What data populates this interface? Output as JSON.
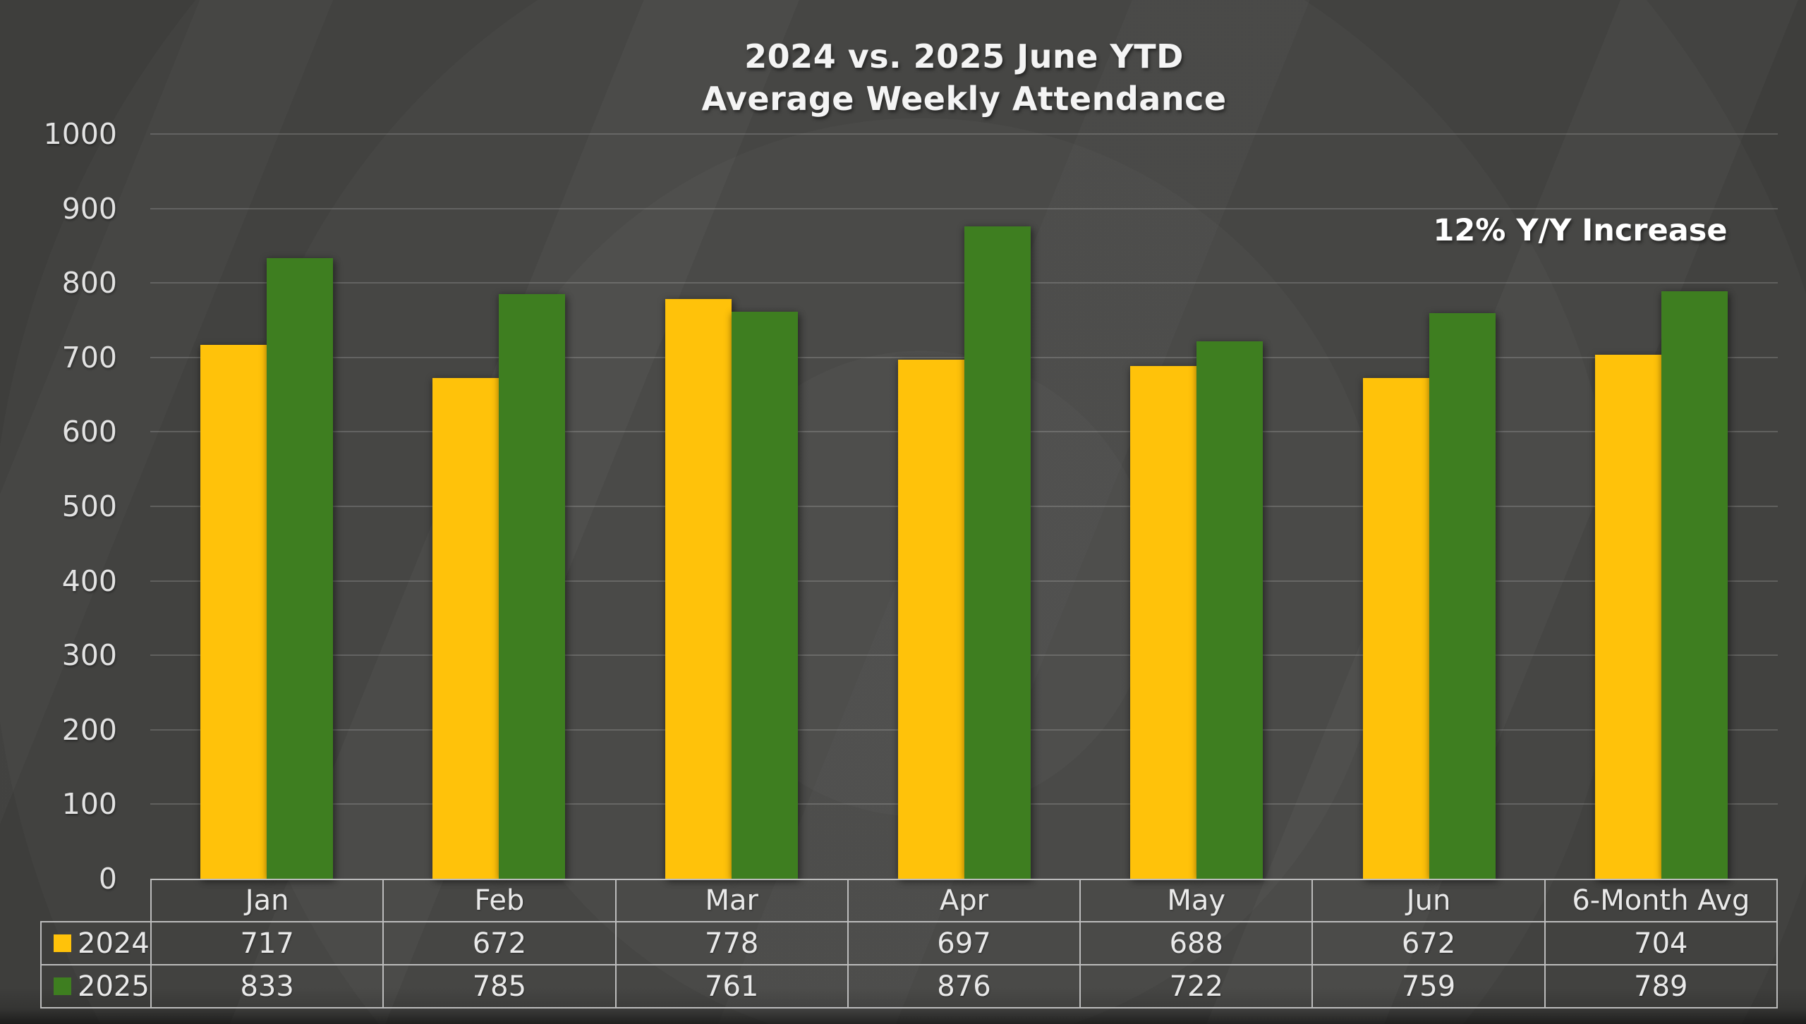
{
  "title": {
    "line1": "2024 vs. 2025 June YTD",
    "line2": "Average Weekly Attendance"
  },
  "annotation": "12% Y/Y Increase",
  "colors": {
    "series_2024": "#FFC20A",
    "series_2025": "#3E7E20",
    "background": "#3C3C3A",
    "text": "#E8E8E8",
    "table_border": "#BCBCBC"
  },
  "chart_data": {
    "type": "bar",
    "title": "2024 vs. 2025 June YTD Average Weekly Attendance",
    "categories": [
      "Jan",
      "Feb",
      "Mar",
      "Apr",
      "May",
      "Jun",
      "6-Month Avg"
    ],
    "series": [
      {
        "name": "2024",
        "color": "#FFC20A",
        "values": [
          717,
          672,
          778,
          697,
          688,
          672,
          704
        ]
      },
      {
        "name": "2025",
        "color": "#3E7E20",
        "values": [
          833,
          785,
          761,
          876,
          722,
          759,
          789
        ]
      }
    ],
    "xlabel": "",
    "ylabel": "",
    "ylim": [
      0,
      1000
    ],
    "yticks": [
      0,
      100,
      200,
      300,
      400,
      500,
      600,
      700,
      800,
      900,
      1000
    ],
    "grid": true,
    "legend_position": "data-table-left",
    "data_table_shown": true,
    "annotations": [
      "12% Y/Y Increase"
    ]
  }
}
